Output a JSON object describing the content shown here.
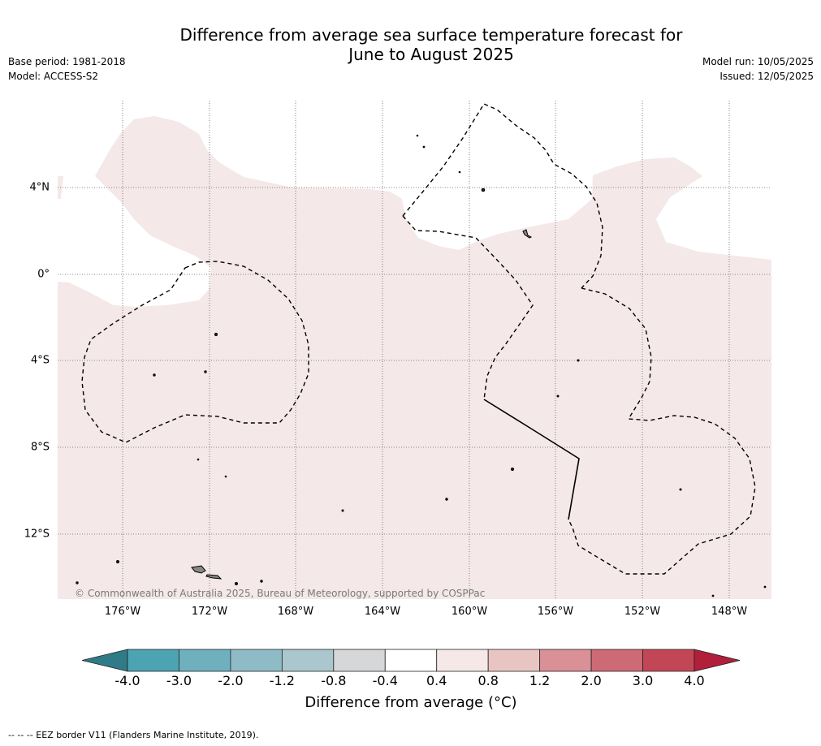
{
  "title_line1": "Difference from average sea surface temperature forecast for",
  "title_line2": "June to August 2025",
  "base_period": "Base period: 1981-2018",
  "model": "Model: ACCESS-S2",
  "model_run": "Model run: 10/05/2025",
  "issued": "Issued: 12/05/2025",
  "lat_labels": [
    "4°N",
    "0°",
    "4°S",
    "8°S",
    "12°S"
  ],
  "lon_labels": [
    "176°W",
    "172°W",
    "168°W",
    "164°W",
    "160°W",
    "156°W",
    "152°W",
    "148°W"
  ],
  "copyright": "© Commonwealth of Australia 2025, Bureau of Meteorology, supported by COSPPac",
  "colorbar": {
    "ticks": [
      "-4.0",
      "-3.0",
      "-2.0",
      "-1.2",
      "-0.8",
      "-0.4",
      "0.4",
      "0.8",
      "1.2",
      "2.0",
      "3.0",
      "4.0"
    ],
    "colors": [
      "#2f7b88",
      "#4ca4b3",
      "#6fb0bf",
      "#8fbbc6",
      "#aac7cd",
      "#d5d7d8",
      "#ffffff",
      "#f5e8e7",
      "#e8c5c2",
      "#d99096",
      "#cd6a76",
      "#c24656",
      "#b11f3a"
    ],
    "title": "Difference from average (°C)"
  },
  "footer": "--  --  -- EEZ border V11 (Flanders Marine Institute, 2019).",
  "map_fill_color": "#f4e8e8"
}
